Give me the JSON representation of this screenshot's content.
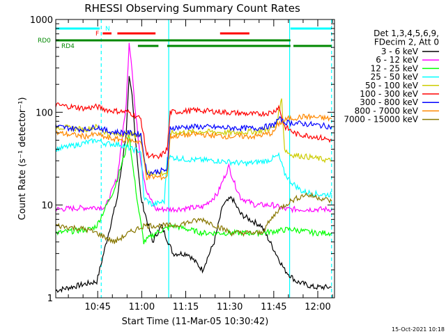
{
  "chart_data": {
    "type": "line",
    "title": "RHESSI Observing Summary Count Rates",
    "xlabel": "Start Time (11-Mar-05 10:30:42)",
    "ylabel": "Count Rate (s⁻¹ detector⁻¹)",
    "ylim": [
      1,
      1000
    ],
    "yscale": "log",
    "xlim_minutes": [
      0,
      95
    ],
    "x_ticks": [
      {
        "label": "10:45",
        "t": 14.3
      },
      {
        "label": "11:00",
        "t": 29.3
      },
      {
        "label": "11:15",
        "t": 44.3
      },
      {
        "label": "11:30",
        "t": 59.3
      },
      {
        "label": "11:45",
        "t": 74.3
      },
      {
        "label": "12:00",
        "t": 89.3
      }
    ],
    "y_ticks": [
      {
        "label": "1",
        "v": 1
      },
      {
        "label": "10",
        "v": 10
      },
      {
        "label": "100",
        "v": 100
      },
      {
        "label": "1000",
        "v": 1000
      }
    ],
    "legend_header": [
      "Det 1,3,4,5,6,9,",
      "FDecim 2, Att 0"
    ],
    "legend_position": "right",
    "series": [
      {
        "name": "3 - 6 keV",
        "color": "#000000",
        "points": [
          [
            0,
            1.2
          ],
          [
            14,
            1.5
          ],
          [
            18,
            5
          ],
          [
            21,
            12
          ],
          [
            24,
            60
          ],
          [
            25,
            230
          ],
          [
            26,
            150
          ],
          [
            27,
            60
          ],
          [
            29,
            12
          ],
          [
            31,
            7
          ],
          [
            33,
            4
          ],
          [
            36,
            6
          ],
          [
            40,
            3
          ],
          [
            45,
            3
          ],
          [
            50,
            2
          ],
          [
            54,
            4
          ],
          [
            57,
            10
          ],
          [
            60,
            12
          ],
          [
            63,
            8
          ],
          [
            66,
            7
          ],
          [
            70,
            6
          ],
          [
            73,
            4
          ],
          [
            78,
            2
          ],
          [
            82,
            1.5
          ],
          [
            88,
            1.3
          ],
          [
            94,
            1.3
          ]
        ]
      },
      {
        "name": "6 - 12 keV",
        "color": "#ff00ff",
        "points": [
          [
            0,
            9
          ],
          [
            14,
            9.5
          ],
          [
            17,
            9.5
          ],
          [
            21,
            20
          ],
          [
            24,
            120
          ],
          [
            25,
            580
          ],
          [
            26,
            300
          ],
          [
            27,
            110
          ],
          [
            29,
            30
          ],
          [
            31,
            14
          ],
          [
            34,
            9
          ],
          [
            40,
            9
          ],
          [
            50,
            9.5
          ],
          [
            55,
            13
          ],
          [
            58,
            22
          ],
          [
            59,
            26
          ],
          [
            61,
            17
          ],
          [
            63,
            12
          ],
          [
            68,
            10
          ],
          [
            74,
            10
          ],
          [
            78,
            9
          ],
          [
            82,
            9
          ],
          [
            88,
            9
          ],
          [
            94,
            9
          ]
        ]
      },
      {
        "name": "12 - 25 keV",
        "color": "#00ff00",
        "points": [
          [
            0,
            5
          ],
          [
            12,
            5.5
          ],
          [
            14,
            6
          ],
          [
            20,
            15
          ],
          [
            24,
            40
          ],
          [
            25,
            60
          ],
          [
            26,
            30
          ],
          [
            28,
            10
          ],
          [
            30,
            4
          ],
          [
            34,
            5
          ],
          [
            40,
            6
          ],
          [
            50,
            5
          ],
          [
            60,
            5
          ],
          [
            70,
            5
          ],
          [
            80,
            5.5
          ],
          [
            88,
            5
          ],
          [
            94,
            5
          ]
        ]
      },
      {
        "name": "25 - 50 keV",
        "color": "#00ffff",
        "points": [
          [
            0,
            40
          ],
          [
            5,
            43
          ],
          [
            14,
            50
          ],
          [
            17,
            46
          ],
          [
            22,
            45
          ],
          [
            26,
            40
          ],
          [
            29,
            38
          ],
          [
            30,
            12
          ],
          [
            33,
            10
          ],
          [
            37,
            11
          ],
          [
            38,
            33
          ],
          [
            45,
            31
          ],
          [
            55,
            30
          ],
          [
            65,
            28
          ],
          [
            72,
            30
          ],
          [
            76,
            34
          ],
          [
            78,
            22
          ],
          [
            80,
            18
          ],
          [
            84,
            14
          ],
          [
            90,
            13
          ],
          [
            94,
            13
          ]
        ]
      },
      {
        "name": "50 - 100 keV",
        "color": "#cccc00",
        "points": [
          [
            0,
            70
          ],
          [
            10,
            65
          ],
          [
            14,
            70
          ],
          [
            18,
            58
          ],
          [
            25,
            58
          ],
          [
            29,
            55
          ],
          [
            31,
            22
          ],
          [
            38,
            22
          ],
          [
            39,
            60
          ],
          [
            50,
            62
          ],
          [
            60,
            60
          ],
          [
            70,
            63
          ],
          [
            75,
            70
          ],
          [
            77,
            140
          ],
          [
            78,
            40
          ],
          [
            80,
            35
          ],
          [
            86,
            33
          ],
          [
            94,
            30
          ]
        ]
      },
      {
        "name": "100 - 300 keV",
        "color": "#ff0000",
        "points": [
          [
            0,
            120
          ],
          [
            10,
            110
          ],
          [
            14,
            115
          ],
          [
            18,
            105
          ],
          [
            25,
            100
          ],
          [
            29,
            85
          ],
          [
            31,
            35
          ],
          [
            35,
            32
          ],
          [
            38,
            40
          ],
          [
            39,
            100
          ],
          [
            48,
            105
          ],
          [
            58,
            100
          ],
          [
            68,
            95
          ],
          [
            74,
            100
          ],
          [
            76,
            115
          ],
          [
            78,
            70
          ],
          [
            82,
            58
          ],
          [
            88,
            55
          ],
          [
            94,
            50
          ]
        ]
      },
      {
        "name": "300 - 800 keV",
        "color": "#0000ff",
        "points": [
          [
            0,
            70
          ],
          [
            10,
            65
          ],
          [
            14,
            70
          ],
          [
            18,
            62
          ],
          [
            25,
            60
          ],
          [
            29,
            58
          ],
          [
            31,
            22
          ],
          [
            38,
            24
          ],
          [
            39,
            68
          ],
          [
            48,
            70
          ],
          [
            58,
            68
          ],
          [
            68,
            67
          ],
          [
            74,
            72
          ],
          [
            76,
            85
          ],
          [
            78,
            78
          ],
          [
            85,
            75
          ],
          [
            94,
            70
          ]
        ]
      },
      {
        "name": "800 - 7000 keV",
        "color": "#ff8800",
        "points": [
          [
            0,
            60
          ],
          [
            10,
            55
          ],
          [
            14,
            58
          ],
          [
            18,
            52
          ],
          [
            25,
            50
          ],
          [
            29,
            48
          ],
          [
            31,
            20
          ],
          [
            38,
            20
          ],
          [
            39,
            55
          ],
          [
            48,
            58
          ],
          [
            58,
            55
          ],
          [
            68,
            55
          ],
          [
            74,
            60
          ],
          [
            76,
            75
          ],
          [
            79,
            85
          ],
          [
            85,
            90
          ],
          [
            94,
            85
          ]
        ]
      },
      {
        "name": "7000 - 15000 keV",
        "color": "#887700",
        "points": [
          [
            0,
            6
          ],
          [
            10,
            5.5
          ],
          [
            14,
            5
          ],
          [
            20,
            4
          ],
          [
            25,
            5
          ],
          [
            30,
            6
          ],
          [
            40,
            6
          ],
          [
            50,
            7
          ],
          [
            60,
            5
          ],
          [
            70,
            5
          ],
          [
            76,
            9
          ],
          [
            80,
            11
          ],
          [
            85,
            13
          ],
          [
            90,
            12
          ],
          [
            94,
            11
          ]
        ]
      }
    ],
    "attenuator_bars": [
      {
        "label": "N",
        "color": "#00ffff",
        "segments": [
          [
            0,
            15
          ],
          [
            80,
            94
          ]
        ]
      },
      {
        "label": "F",
        "color": "#ff0000",
        "segments": [
          [
            16,
            19
          ],
          [
            21,
            34
          ],
          [
            56,
            66
          ]
        ]
      },
      {
        "label": "RD0",
        "color": "#008800",
        "segments": [
          [
            0,
            80
          ]
        ]
      },
      {
        "label": "RD4",
        "color": "#008800",
        "segments": [
          [
            28,
            35
          ],
          [
            38,
            80
          ],
          [
            81,
            94
          ]
        ]
      }
    ],
    "vertical_markers": [
      {
        "t": 15.5,
        "color": "#00ffff",
        "style": "dashed"
      },
      {
        "t": 38.5,
        "color": "#00ffff",
        "style": "solid"
      },
      {
        "t": 79.7,
        "color": "#00ffff",
        "style": "solid"
      },
      {
        "t": 94,
        "color": "#00ffff",
        "style": "dashed"
      }
    ]
  },
  "footer_timestamp": "15-Oct-2021 10:18"
}
